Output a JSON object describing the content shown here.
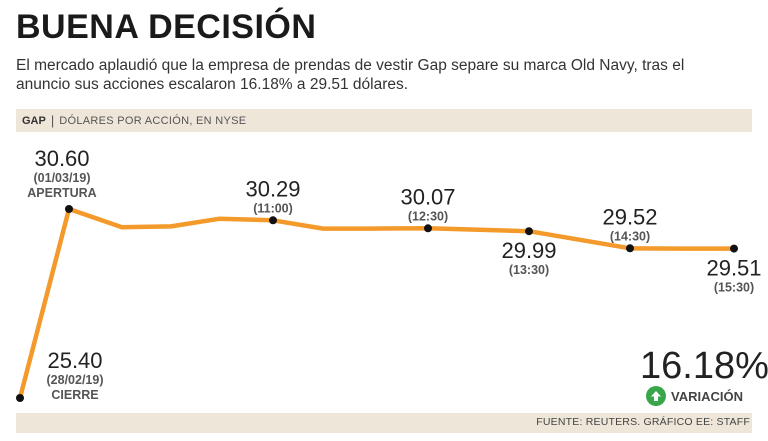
{
  "title": "BUENA DECISIÓN",
  "subtitle": "El mercado aplaudió que la empresa de prendas de vestir Gap separe su marca Old Navy, tras el anuncio sus acciones escalaron 16.18% a 29.51 dólares.",
  "header": {
    "ticker": "GAP",
    "separator": "|",
    "units": "DÓLARES POR ACCIÓN, EN NYSE"
  },
  "variation": {
    "value": "16.18%",
    "label": "VARIACIÓN",
    "icon": "arrow-up-circle-icon"
  },
  "source": "FUENTE: REUTERS. GRÁFICO EE: STAFF",
  "colors": {
    "line": "#f39a2b",
    "bands": "#eee6d9",
    "up": "#3aa64b"
  },
  "chart_data": {
    "type": "line",
    "title": "GAP",
    "ylabel": "Dólares por acción, en NYSE",
    "ylim": [
      25.2,
      30.8
    ],
    "grid": false,
    "series": [
      {
        "name": "GAP",
        "points": [
          {
            "x": 0,
            "y": 25.4
          },
          {
            "x": 1,
            "y": 30.6
          },
          {
            "x": 2,
            "y": 30.1
          },
          {
            "x": 3,
            "y": 30.12
          },
          {
            "x": 4,
            "y": 30.33
          },
          {
            "x": 5,
            "y": 30.29
          },
          {
            "x": 6,
            "y": 30.06
          },
          {
            "x": 7,
            "y": 30.06
          },
          {
            "x": 8,
            "y": 30.07
          },
          {
            "x": 9,
            "y": 29.99
          },
          {
            "x": 10,
            "y": 29.52
          },
          {
            "x": 11,
            "y": 29.51
          },
          {
            "x": 12,
            "y": 29.51
          }
        ]
      }
    ],
    "labeled_points": [
      {
        "x": 0,
        "y": 25.4,
        "value": "25.40",
        "time": "(28/02/19)",
        "tag": "CIERRE",
        "pos": "right-above"
      },
      {
        "x": 1,
        "y": 30.6,
        "value": "30.60",
        "time": "(01/03/19)",
        "tag": "APERTURA",
        "pos": "left-above"
      },
      {
        "x": 5,
        "y": 30.29,
        "value": "30.29",
        "time": "(11:00)",
        "tag": "",
        "pos": "above"
      },
      {
        "x": 8,
        "y": 30.07,
        "value": "30.07",
        "time": "(12:30)",
        "tag": "",
        "pos": "above"
      },
      {
        "x": 9,
        "y": 29.99,
        "value": "29.99",
        "time": "(13:30)",
        "tag": "",
        "pos": "below"
      },
      {
        "x": 10,
        "y": 29.52,
        "value": "29.52",
        "time": "(14:30)",
        "tag": "",
        "pos": "above"
      },
      {
        "x": 12,
        "y": 29.51,
        "value": "29.51",
        "time": "(15:30)",
        "tag": "",
        "pos": "below"
      }
    ]
  }
}
